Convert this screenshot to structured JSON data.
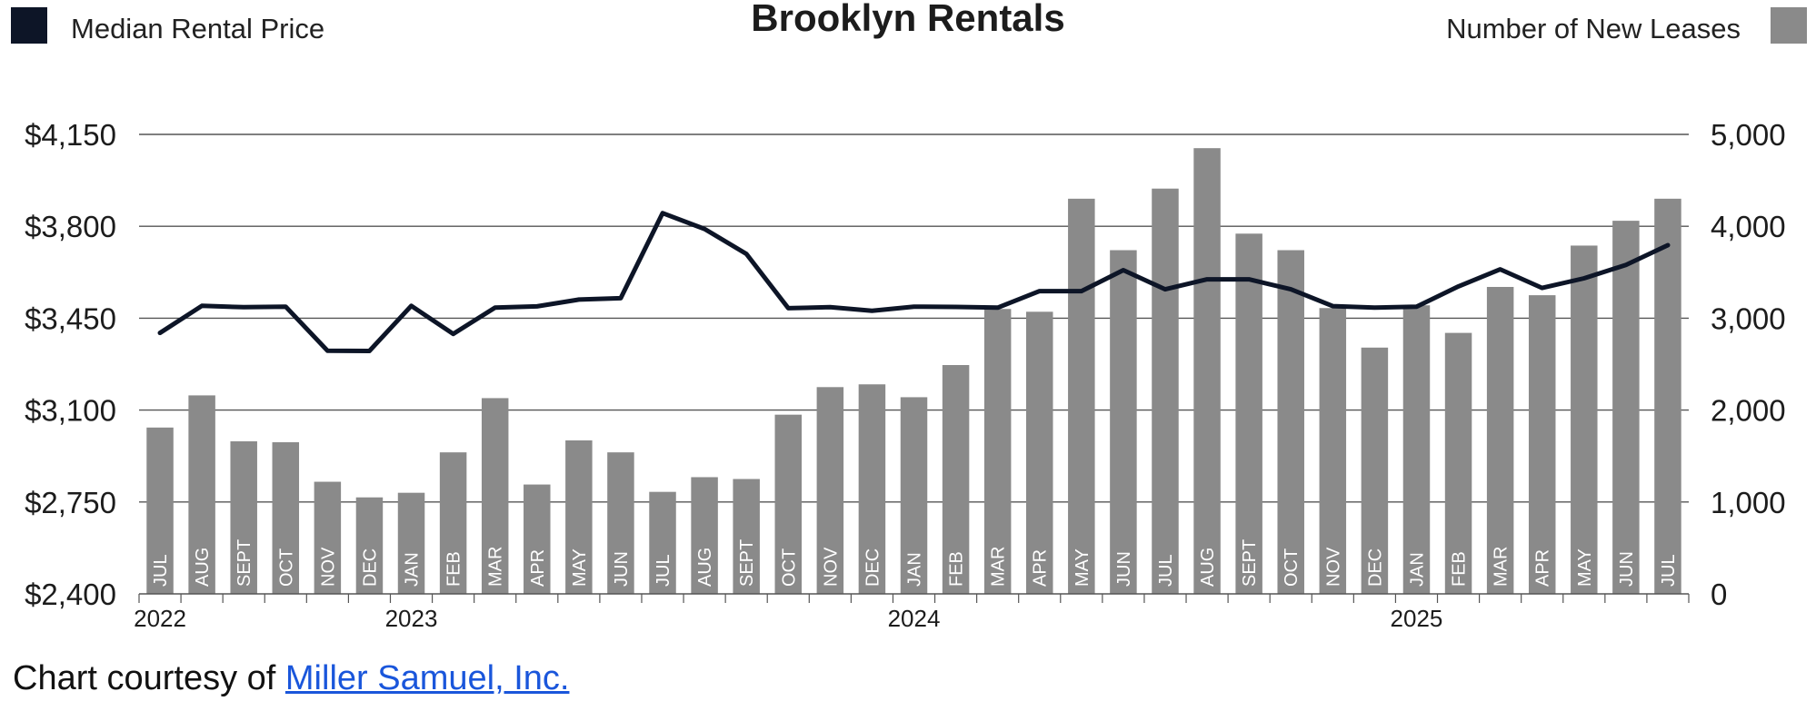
{
  "chart_data": {
    "type": "bar+line",
    "title": "Brooklyn Rentals",
    "legend": {
      "left": {
        "label": "Median Rental Price",
        "color": "#0d1527"
      },
      "right": {
        "label": "Number of New Leases",
        "color": "#8a8a8a"
      }
    },
    "y_left": {
      "ticks": [
        "$4,150",
        "$3,800",
        "$3,450",
        "$3,100",
        "$2,750",
        "$2,400"
      ],
      "min": 2400,
      "max": 4150
    },
    "y_right": {
      "ticks": [
        "5,000",
        "4,000",
        "3,000",
        "2,000",
        "1,000",
        "0"
      ],
      "min": 0,
      "max": 5000
    },
    "months": [
      "JUL",
      "AUG",
      "SEPT",
      "OCT",
      "NOV",
      "DEC",
      "JAN",
      "FEB",
      "MAR",
      "APR",
      "MAY",
      "JUN",
      "JUL",
      "AUG",
      "SEPT",
      "OCT",
      "NOV",
      "DEC",
      "JAN",
      "FEB",
      "MAR",
      "APR",
      "MAY",
      "JUN",
      "JUL",
      "AUG",
      "SEPT",
      "OCT",
      "NOV",
      "DEC",
      "JAN",
      "FEB",
      "MAR",
      "APR",
      "MAY",
      "JUN",
      "JUL"
    ],
    "year_labels": [
      {
        "label": "2022",
        "month_index": 0
      },
      {
        "label": "2023",
        "month_index": 6
      },
      {
        "label": "2024",
        "month_index": 18
      },
      {
        "label": "2025",
        "month_index": 30
      }
    ],
    "series": [
      {
        "name": "Number of New Leases",
        "type": "bar",
        "color": "#8a8a8a",
        "values": [
          1810,
          2160,
          1660,
          1650,
          1220,
          1050,
          1100,
          1540,
          2130,
          1190,
          1670,
          1540,
          1110,
          1270,
          1250,
          1950,
          2250,
          2280,
          2140,
          2490,
          3100,
          3070,
          4300,
          3740,
          4410,
          4850,
          3920,
          3740,
          3110,
          2680,
          3140,
          2840,
          3340,
          3250,
          3790,
          4060,
          4300
        ]
      },
      {
        "name": "Median Rental Price",
        "type": "line",
        "color": "#0d1527",
        "values": [
          3394,
          3497,
          3492,
          3494,
          3326,
          3325,
          3497,
          3390,
          3490,
          3495,
          3521,
          3526,
          3850,
          3790,
          3695,
          3488,
          3492,
          3478,
          3494,
          3493,
          3490,
          3553,
          3553,
          3633,
          3560,
          3598,
          3598,
          3560,
          3496,
          3490,
          3494,
          3571,
          3636,
          3565,
          3602,
          3653,
          3728
        ]
      }
    ]
  },
  "footer": {
    "prefix": "Chart courtesy of ",
    "link_text": "Miller Samuel, Inc."
  }
}
